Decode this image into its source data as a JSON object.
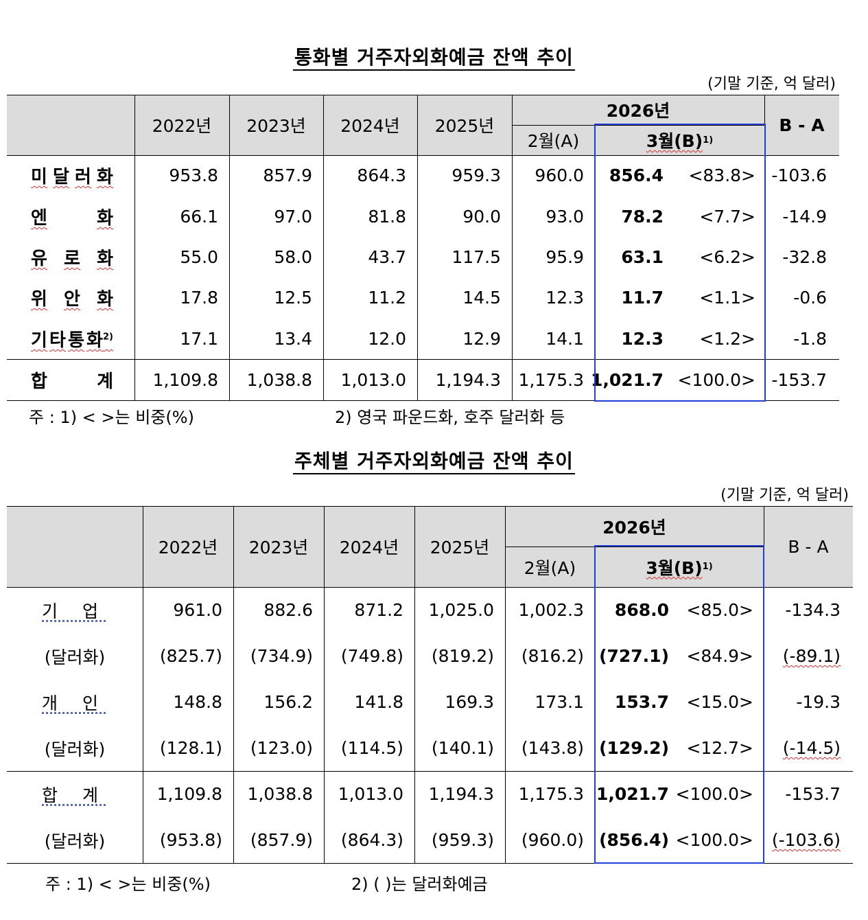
{
  "table1": {
    "title": "통화별 거주자외화예금 잔액 추이",
    "unit": "(기말 기준, 억 달러)",
    "header": {
      "years": [
        "2022년",
        "2023년",
        "2024년",
        "2025년"
      ],
      "year_2026": "2026년",
      "feb": "2월(A)",
      "mar": "3월(B)",
      "mar_sup": "1)",
      "diff": "B - A"
    },
    "rows": [
      {
        "label_chars": [
          "미",
          "달",
          "러",
          "화"
        ],
        "values": [
          "953.8",
          "857.9",
          "864.3",
          "959.3",
          "960.0"
        ],
        "mar": "856.4",
        "share": "<83.8>",
        "diff": "-103.6"
      },
      {
        "label_chars": [
          "엔",
          "화"
        ],
        "values": [
          "66.1",
          "97.0",
          "81.8",
          "90.0",
          "93.0"
        ],
        "mar": "78.2",
        "share": "<7.7>",
        "diff": "-14.9"
      },
      {
        "label_chars": [
          "유",
          "로",
          "화"
        ],
        "values": [
          "55.0",
          "58.0",
          "43.7",
          "117.5",
          "95.9"
        ],
        "mar": "63.1",
        "share": "<6.2>",
        "diff": "-32.8"
      },
      {
        "label_chars": [
          "위",
          "안",
          "화"
        ],
        "values": [
          "17.8",
          "12.5",
          "11.2",
          "14.5",
          "12.3"
        ],
        "mar": "11.7",
        "share": "<1.1>",
        "diff": "-0.6"
      },
      {
        "label_chars": [
          "기",
          "타",
          "통",
          "화"
        ],
        "label_sup": "2)",
        "values": [
          "17.1",
          "13.4",
          "12.0",
          "12.9",
          "14.1"
        ],
        "mar": "12.3",
        "share": "<1.2>",
        "diff": "-1.8"
      }
    ],
    "total": {
      "label_chars": [
        "합",
        "계"
      ],
      "values": [
        "1,109.8",
        "1,038.8",
        "1,013.0",
        "1,194.3",
        "1,175.3"
      ],
      "mar": "1,021.7",
      "share": "<100.0>",
      "diff": "-153.7"
    },
    "note1": "주 : 1) <   >는 비중(%)",
    "note2": "2) 영국 파운드화, 호주 달러화 등"
  },
  "table2": {
    "title": "주체별 거주자외화예금 잔액 추이",
    "unit": "(기말 기준, 억 달러)",
    "header": {
      "years": [
        "2022년",
        "2023년",
        "2024년",
        "2025년"
      ],
      "year_2026": "2026년",
      "feb": "2월(A)",
      "mar": "3월(B)",
      "mar_sup": "1)",
      "diff": "B - A"
    },
    "rows": [
      {
        "label": "기 업",
        "values": [
          "961.0",
          "882.6",
          "871.2",
          "1,025.0",
          "1,002.3"
        ],
        "mar": "868.0",
        "share": "<85.0>",
        "diff": "-134.3"
      },
      {
        "label": "(달러화)",
        "values": [
          "(825.7)",
          "(734.9)",
          "(749.8)",
          "(819.2)",
          "(816.2)"
        ],
        "mar": "(727.1)",
        "share": "<84.9>",
        "diff": "(-89.1)"
      },
      {
        "label": "개 인",
        "values": [
          "148.8",
          "156.2",
          "141.8",
          "169.3",
          "173.1"
        ],
        "mar": "153.7",
        "share": "<15.0>",
        "diff": "-19.3"
      },
      {
        "label": "(달러화)",
        "values": [
          "(128.1)",
          "(123.0)",
          "(114.5)",
          "(140.1)",
          "(143.8)"
        ],
        "mar": "(129.2)",
        "share": "<12.7>",
        "diff": "(-14.5)"
      },
      {
        "label": "합 계",
        "values": [
          "1,109.8",
          "1,038.8",
          "1,013.0",
          "1,194.3",
          "1,175.3"
        ],
        "mar": "1,021.7",
        "share": "<100.0>",
        "diff": "-153.7"
      },
      {
        "label": "(달러화)",
        "values": [
          "(953.8)",
          "(857.9)",
          "(864.3)",
          "(959.3)",
          "(960.0)"
        ],
        "mar": "(856.4)",
        "share": "<100.0>",
        "diff": "(-103.6)"
      }
    ],
    "note1": "주 : 1) <   >는 비중(%)",
    "note2": "2) (   )는 달러화예금"
  }
}
